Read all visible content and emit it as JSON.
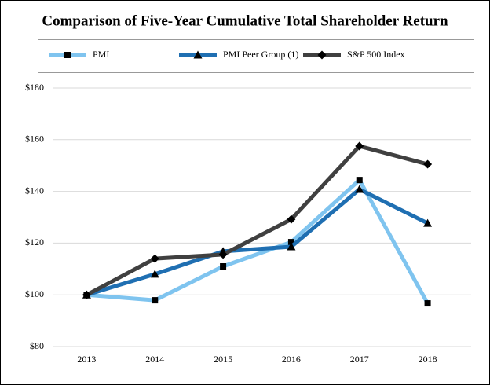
{
  "chart_data": {
    "type": "line",
    "title": "Comparison of Five-Year Cumulative Total Shareholder Return",
    "categories": [
      "2013",
      "2014",
      "2015",
      "2016",
      "2017",
      "2018"
    ],
    "series": [
      {
        "name": "PMI",
        "color": "#7fc4ef",
        "marker": "square",
        "values": [
          100,
          97.9,
          111,
          120.4,
          144.4,
          96.7
        ]
      },
      {
        "name": "PMI Peer Group (1)",
        "color": "#1f6fb2",
        "marker": "triangle",
        "values": [
          100,
          108,
          116.8,
          118.6,
          140.8,
          127.7
        ]
      },
      {
        "name": "S&P 500 Index",
        "color": "#404040",
        "marker": "diamond",
        "values": [
          100,
          114,
          115.6,
          129.2,
          157.5,
          150.5
        ]
      }
    ],
    "ylim": [
      80,
      180
    ],
    "yticks": [
      {
        "value": 80,
        "label": "$80"
      },
      {
        "value": 100,
        "label": "$100"
      },
      {
        "value": 120,
        "label": "$120"
      },
      {
        "value": 140,
        "label": "$140"
      },
      {
        "value": 160,
        "label": "$160"
      },
      {
        "value": 180,
        "label": "$180"
      }
    ],
    "grid": true,
    "legend": "top"
  }
}
